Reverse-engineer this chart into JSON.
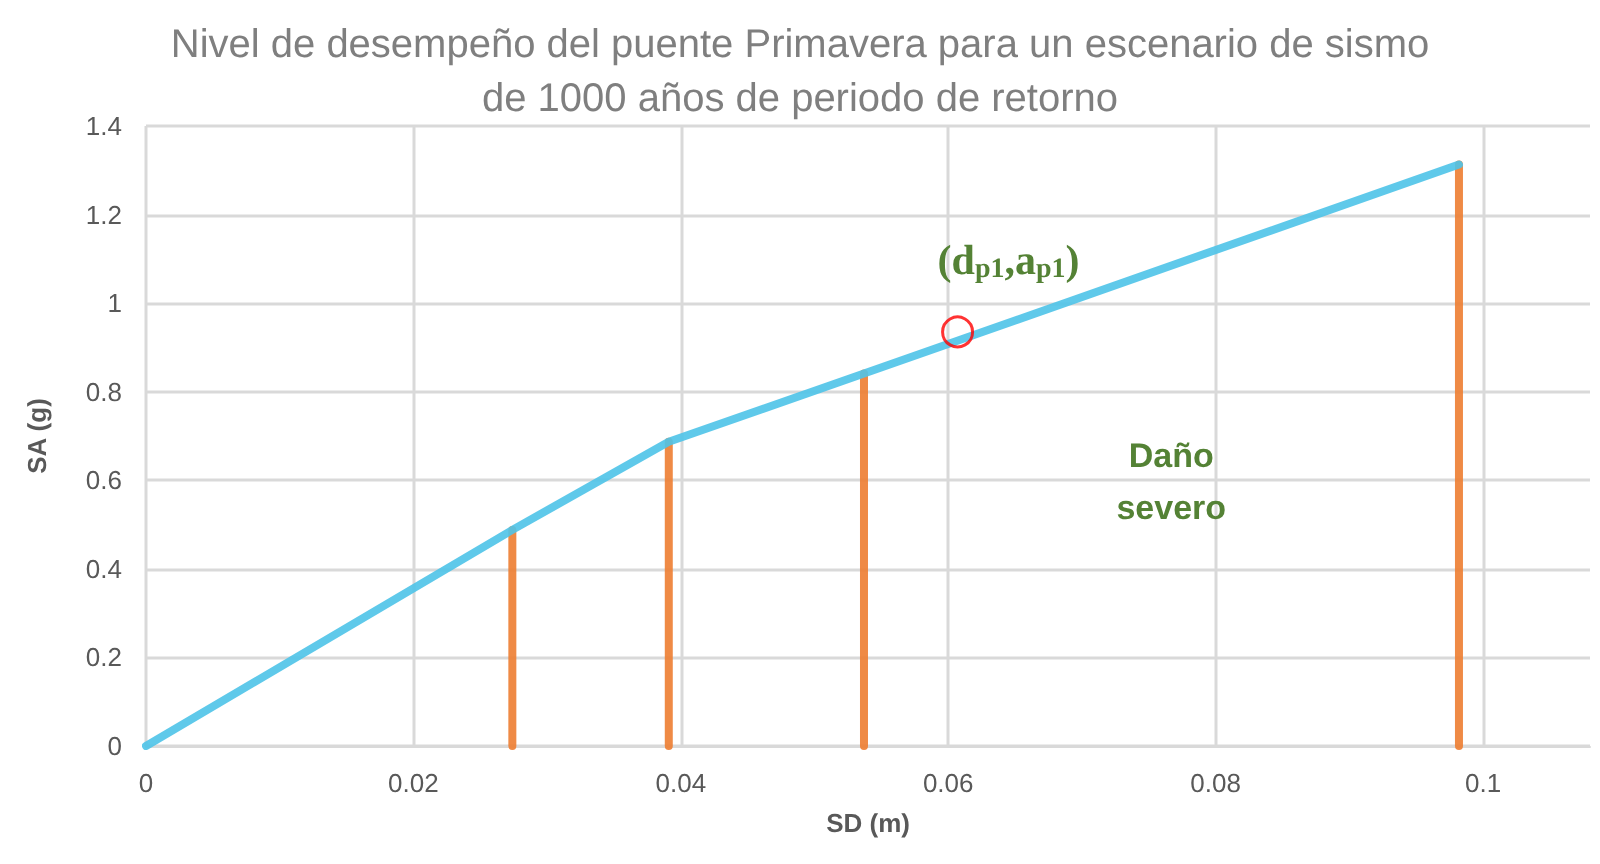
{
  "chart_data": {
    "type": "line",
    "title": "Nivel de desempeño del puente Primavera para un escenario de sismo\nde 1000 años de periodo de retorno",
    "xlabel": "SD (m)",
    "ylabel": "SA (g)",
    "xlim": [
      0,
      0.108
    ],
    "xticks": [
      0,
      0.02,
      0.04,
      0.06,
      0.08,
      0.1
    ],
    "ylim": [
      0,
      1.4
    ],
    "yticks": [
      0,
      0.2,
      0.4,
      0.6,
      0.8,
      1,
      1.2,
      1.4
    ],
    "grid": true,
    "marker": "none",
    "line_style": "solid",
    "series": [
      {
        "color": "#4ec3e8",
        "x": [
          0,
          0.0274,
          0.0391,
          0.0537,
          0.0982
        ],
        "values": [
          0,
          0.488,
          0.687,
          0.841,
          1.313
        ]
      },
      {
        "color": "#ed7d31",
        "x": [
          0.0274,
          0.0274
        ],
        "values": [
          0,
          0.488
        ]
      },
      {
        "color": "#ed7d31",
        "x": [
          0.0391,
          0.0391
        ],
        "values": [
          0,
          0.687
        ]
      },
      {
        "color": "#ed7d31",
        "x": [
          0.0537,
          0.0537
        ],
        "values": [
          0,
          0.841
        ]
      },
      {
        "color": "#ed7d31",
        "x": [
          0.0982,
          0.0982
        ],
        "values": [
          0,
          1.313
        ]
      },
      {
        "type": "scatter",
        "color": "#ff0000",
        "marker": "circle",
        "x": [
          0.0607
        ],
        "values": [
          0.935
        ]
      }
    ],
    "annotations": [
      {
        "text": "(d$_{p1}$,a$_{p1}$)",
        "x": 0.0607,
        "y": 0.935
      },
      "Daño\nsevero"
    ]
  }
}
